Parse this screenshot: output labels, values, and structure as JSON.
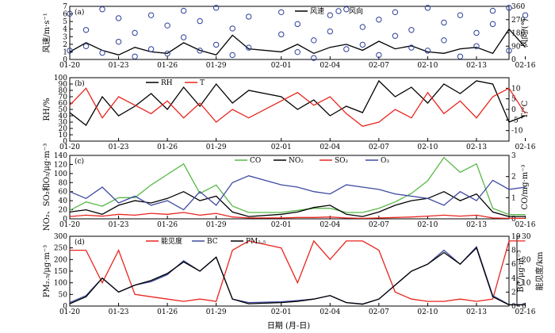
{
  "figure": {
    "xlabel": "日期 (月-日)",
    "date_ticks": [
      "01-20",
      "01-23",
      "01-26",
      "01-29",
      "02-01",
      "02-04",
      "02-07",
      "02-10",
      "02-13",
      "02-16"
    ]
  },
  "colors": {
    "black": "#000000",
    "red": "#e8251f",
    "green": "#58b947",
    "blue": "#3f4aa0",
    "marker_blue": "#2f3f9a"
  },
  "chart_data": [
    {
      "type": "line",
      "panel": "(a)",
      "ylabel_left": "风速/m·s⁻¹",
      "ylabel_right": "风向/(°)",
      "ylim_left": [
        0,
        7
      ],
      "ylim_right": [
        0,
        360
      ],
      "yticks_left": [
        "0",
        "1",
        "2",
        "3",
        "4",
        "5",
        "6",
        "7"
      ],
      "yticks_right": [
        "0",
        "90",
        "180",
        "270",
        "360"
      ],
      "legend": [
        "风速",
        "风向"
      ],
      "series": [
        {
          "name": "风速",
          "axis": "left",
          "color": "#000000",
          "style": "line",
          "x": [
            "01-20",
            "01-21",
            "01-22",
            "01-23",
            "01-24",
            "01-25",
            "01-26",
            "01-27",
            "01-28",
            "01-29",
            "01-30",
            "01-31",
            "02-01",
            "02-02",
            "02-03",
            "02-04",
            "02-05",
            "02-06",
            "02-07",
            "02-08",
            "02-09",
            "02-10",
            "02-11",
            "02-12",
            "02-13",
            "02-14",
            "02-15",
            "02-16"
          ],
          "values": [
            1.0,
            2.2,
            1.2,
            0.6,
            1.6,
            1.0,
            0.8,
            2.2,
            1.2,
            0.6,
            3.2,
            1.4,
            1.0,
            2.0,
            0.8,
            1.6,
            2.0,
            1.2,
            2.4,
            1.4,
            1.8,
            1.0,
            0.8,
            1.4,
            1.6,
            0.8,
            4.0,
            1.6
          ]
        },
        {
          "name": "风向",
          "axis": "right",
          "color": "#2f3f9a",
          "style": "markers",
          "x": [
            "01-20",
            "01-20",
            "01-21",
            "01-21",
            "01-22",
            "01-22",
            "01-23",
            "01-23",
            "01-24",
            "01-24",
            "01-25",
            "01-25",
            "01-26",
            "01-26",
            "01-27",
            "01-27",
            "01-28",
            "01-28",
            "01-29",
            "01-29",
            "01-30",
            "01-30",
            "01-31",
            "01-31",
            "02-01",
            "02-01",
            "02-02",
            "02-02",
            "02-03",
            "02-03",
            "02-04",
            "02-04",
            "02-05",
            "02-05",
            "02-06",
            "02-06",
            "02-07",
            "02-07",
            "02-08",
            "02-08",
            "02-09",
            "02-09",
            "02-10",
            "02-10",
            "02-11",
            "02-11",
            "02-12",
            "02-12",
            "02-13",
            "02-13",
            "02-14",
            "02-14",
            "02-15",
            "02-15",
            "02-16"
          ],
          "values": [
            310,
            60,
            200,
            90,
            340,
            45,
            120,
            280,
            20,
            180,
            300,
            70,
            230,
            40,
            330,
            150,
            60,
            260,
            100,
            350,
            210,
            30,
            290,
            80,
            170,
            320,
            50,
            240,
            130,
            10,
            300,
            190,
            70,
            340,
            220,
            100,
            30,
            270,
            160,
            320,
            80,
            200,
            350,
            60,
            250,
            130,
            20,
            300,
            180,
            90,
            330,
            240,
            60,
            350,
            300
          ]
        }
      ]
    },
    {
      "type": "line",
      "panel": "(b)",
      "ylabel_left": "RH/%",
      "ylabel_right": "T/°C",
      "ylim_left": [
        0,
        100
      ],
      "ylim_right": [
        -15,
        15
      ],
      "yticks_left": [
        "0",
        "10",
        "20",
        "30",
        "40",
        "50",
        "60",
        "70",
        "80",
        "90",
        "100"
      ],
      "yticks_right": [
        "-10",
        "-5",
        "0",
        "5",
        "10"
      ],
      "legend": [
        "RH",
        "T"
      ],
      "series": [
        {
          "name": "RH",
          "axis": "left",
          "color": "#000000",
          "x": [
            "01-20",
            "01-21",
            "01-22",
            "01-23",
            "01-24",
            "01-25",
            "01-26",
            "01-27",
            "01-28",
            "01-29",
            "01-30",
            "01-31",
            "02-01",
            "02-02",
            "02-03",
            "02-04",
            "02-05",
            "02-06",
            "02-07",
            "02-08",
            "02-09",
            "02-10",
            "02-11",
            "02-12",
            "02-13",
            "02-14",
            "02-15",
            "02-16"
          ],
          "values": [
            45,
            25,
            70,
            40,
            55,
            75,
            50,
            85,
            55,
            90,
            60,
            80,
            70,
            50,
            65,
            40,
            55,
            45,
            95,
            70,
            85,
            60,
            90,
            75,
            95,
            90,
            30,
            40
          ]
        },
        {
          "name": "T",
          "axis": "right",
          "color": "#e8251f",
          "x": [
            "01-20",
            "01-21",
            "01-22",
            "01-23",
            "01-24",
            "01-25",
            "01-26",
            "01-27",
            "01-28",
            "01-29",
            "01-30",
            "01-31",
            "02-01",
            "02-02",
            "02-03",
            "02-04",
            "02-05",
            "02-06",
            "02-07",
            "02-08",
            "02-09",
            "02-10",
            "02-11",
            "02-12",
            "02-13",
            "02-14",
            "02-15",
            "02-16"
          ],
          "values": [
            2,
            10,
            -4,
            6,
            2,
            -2,
            4,
            -4,
            3,
            -6,
            0,
            -4,
            4,
            8,
            2,
            6,
            -2,
            -8,
            -6,
            0,
            -4,
            8,
            -2,
            4,
            -4,
            6,
            10,
            -2
          ]
        }
      ]
    },
    {
      "type": "line",
      "panel": "(c)",
      "ylabel_left": "NO₂、SO₂和O₃/μg·m⁻³",
      "ylabel_right": "CO/mg·m⁻³",
      "ylim_left": [
        0,
        140
      ],
      "ylim_right": [
        0,
        3
      ],
      "yticks_left": [
        "0",
        "20",
        "40",
        "60",
        "80",
        "100",
        "120",
        "140"
      ],
      "yticks_right": [
        "0",
        "1",
        "2",
        "3"
      ],
      "legend": [
        "CO",
        "NO₂",
        "SO₂",
        "O₃"
      ],
      "series": [
        {
          "name": "CO",
          "axis": "right",
          "color": "#58b947",
          "x": [
            "01-20",
            "01-21",
            "01-22",
            "01-23",
            "01-24",
            "01-25",
            "01-26",
            "01-27",
            "01-28",
            "01-29",
            "01-30",
            "01-31",
            "02-01",
            "02-02",
            "02-03",
            "02-04",
            "02-05",
            "02-06",
            "02-07",
            "02-08",
            "02-09",
            "02-10",
            "02-11",
            "02-12",
            "02-13",
            "02-14",
            "02-15",
            "02-16"
          ],
          "values": [
            0.4,
            0.8,
            0.6,
            1.0,
            1.0,
            1.6,
            2.1,
            2.6,
            1.2,
            1.6,
            0.6,
            0.3,
            0.3,
            0.4,
            0.5,
            0.5,
            0.3,
            0.3,
            0.5,
            0.8,
            1.2,
            1.8,
            2.9,
            2.2,
            2.6,
            0.5,
            0.2,
            0.2
          ]
        },
        {
          "name": "NO₂",
          "axis": "left",
          "color": "#000000",
          "x": [
            "01-20",
            "01-21",
            "01-22",
            "01-23",
            "01-24",
            "01-25",
            "01-26",
            "01-27",
            "01-28",
            "01-29",
            "01-30",
            "01-31",
            "02-01",
            "02-02",
            "02-03",
            "02-04",
            "02-05",
            "02-06",
            "02-07",
            "02-08",
            "02-09",
            "02-10",
            "02-11",
            "02-12",
            "02-13",
            "02-14",
            "02-15",
            "02-16"
          ],
          "values": [
            15,
            20,
            10,
            30,
            40,
            35,
            45,
            60,
            40,
            50,
            15,
            5,
            10,
            15,
            25,
            30,
            10,
            5,
            15,
            30,
            40,
            45,
            60,
            40,
            55,
            15,
            5,
            5
          ]
        },
        {
          "name": "SO₂",
          "axis": "left",
          "color": "#e8251f",
          "x": [
            "01-20",
            "01-21",
            "01-22",
            "01-23",
            "01-24",
            "01-25",
            "01-26",
            "01-27",
            "01-28",
            "01-29",
            "01-30",
            "01-31",
            "02-01",
            "02-02",
            "02-03",
            "02-04",
            "02-05",
            "02-06",
            "02-07",
            "02-08",
            "02-09",
            "02-10",
            "02-11",
            "02-12",
            "02-13",
            "02-14",
            "02-15",
            "02-16"
          ],
          "values": [
            5,
            8,
            6,
            10,
            8,
            12,
            10,
            14,
            8,
            12,
            4,
            2,
            2,
            3,
            3,
            4,
            2,
            1,
            2,
            3,
            4,
            6,
            8,
            6,
            8,
            2,
            1,
            1
          ]
        },
        {
          "name": "O₃",
          "axis": "left",
          "color": "#3f4aa0",
          "x": [
            "01-20",
            "01-21",
            "01-22",
            "01-23",
            "01-24",
            "01-25",
            "01-26",
            "01-27",
            "01-28",
            "01-29",
            "01-30",
            "01-31",
            "02-01",
            "02-02",
            "02-03",
            "02-04",
            "02-05",
            "02-06",
            "02-07",
            "02-08",
            "02-09",
            "02-10",
            "02-11",
            "02-12",
            "02-13",
            "02-14",
            "02-15",
            "02-16"
          ],
          "values": [
            60,
            45,
            70,
            35,
            50,
            30,
            40,
            20,
            60,
            30,
            80,
            95,
            75,
            70,
            60,
            55,
            75,
            70,
            65,
            55,
            50,
            45,
            30,
            60,
            40,
            85,
            65,
            70
          ]
        }
      ]
    },
    {
      "type": "line",
      "panel": "(d)",
      "ylabel_left": "PM₂.₅/μg·m⁻³",
      "ylabel_right": "BC/μg·m⁻³",
      "ylabel_right2": "能见度/km",
      "ylim_left": [
        0,
        300
      ],
      "ylim_right": [
        0,
        10
      ],
      "ylim_right2": [
        0,
        30
      ],
      "yticks_left": [
        "0",
        "50",
        "100",
        "150",
        "200",
        "250",
        "300"
      ],
      "yticks_right": [
        "0",
        "2",
        "4",
        "6",
        "8",
        "10"
      ],
      "yticks_right2": [
        "0",
        "10",
        "20",
        "30"
      ],
      "legend": [
        "能见度",
        "BC",
        "PM₂.₅"
      ],
      "series": [
        {
          "name": "能见度",
          "axis": "right2",
          "color": "#e8251f",
          "x": [
            "01-20",
            "01-21",
            "01-22",
            "01-23",
            "01-24",
            "01-25",
            "01-26",
            "01-27",
            "01-28",
            "01-29",
            "01-30",
            "01-31",
            "02-01",
            "02-02",
            "02-03",
            "02-04",
            "02-05",
            "02-06",
            "02-07",
            "02-08",
            "02-09",
            "02-10",
            "02-11",
            "02-12",
            "02-13",
            "02-14",
            "02-15",
            "02-16"
          ],
          "values": [
            24,
            24,
            10,
            24,
            5,
            4,
            3,
            2,
            3,
            2,
            24,
            28,
            25,
            10,
            28,
            20,
            28,
            28,
            24,
            6,
            3,
            2,
            2,
            3,
            2,
            3,
            28,
            28
          ]
        },
        {
          "name": "BC",
          "axis": "right",
          "color": "#3f4aa0",
          "x": [
            "01-20",
            "01-21",
            "01-22",
            "01-23",
            "01-24",
            "01-25",
            "01-26",
            "01-27",
            "01-28",
            "01-29",
            "01-30",
            "01-31",
            "02-01",
            "02-02",
            "02-03",
            "02-04",
            "02-05",
            "02-06",
            "02-07",
            "02-08",
            "02-09",
            "02-10",
            "02-11",
            "02-12",
            "02-13",
            "02-14",
            "02-15",
            "02-16"
          ],
          "values": [
            0.5,
            1.5,
            4.0,
            2.0,
            3.0,
            3.5,
            4.5,
            6.5,
            5.0,
            7.0,
            1.0,
            0.5,
            0.6,
            0.8,
            1.0,
            1.5,
            0.5,
            0.3,
            1.0,
            3.0,
            5.0,
            6.0,
            8.0,
            6.0,
            8.5,
            1.5,
            0.2,
            0.2
          ]
        },
        {
          "name": "PM₂.₅",
          "axis": "left",
          "color": "#000000",
          "x": [
            "01-20",
            "01-21",
            "01-22",
            "01-23",
            "01-24",
            "01-25",
            "01-26",
            "01-27",
            "01-28",
            "01-29",
            "01-30",
            "01-31",
            "02-01",
            "02-02",
            "02-03",
            "02-04",
            "02-05",
            "02-06",
            "02-07",
            "02-08",
            "02-09",
            "02-10",
            "02-11",
            "02-12",
            "02-13",
            "02-14",
            "02-15",
            "02-16"
          ],
          "values": [
            10,
            40,
            120,
            60,
            90,
            110,
            140,
            190,
            150,
            210,
            30,
            10,
            15,
            20,
            30,
            45,
            15,
            8,
            30,
            90,
            150,
            180,
            230,
            180,
            250,
            40,
            5,
            5
          ]
        }
      ]
    }
  ]
}
